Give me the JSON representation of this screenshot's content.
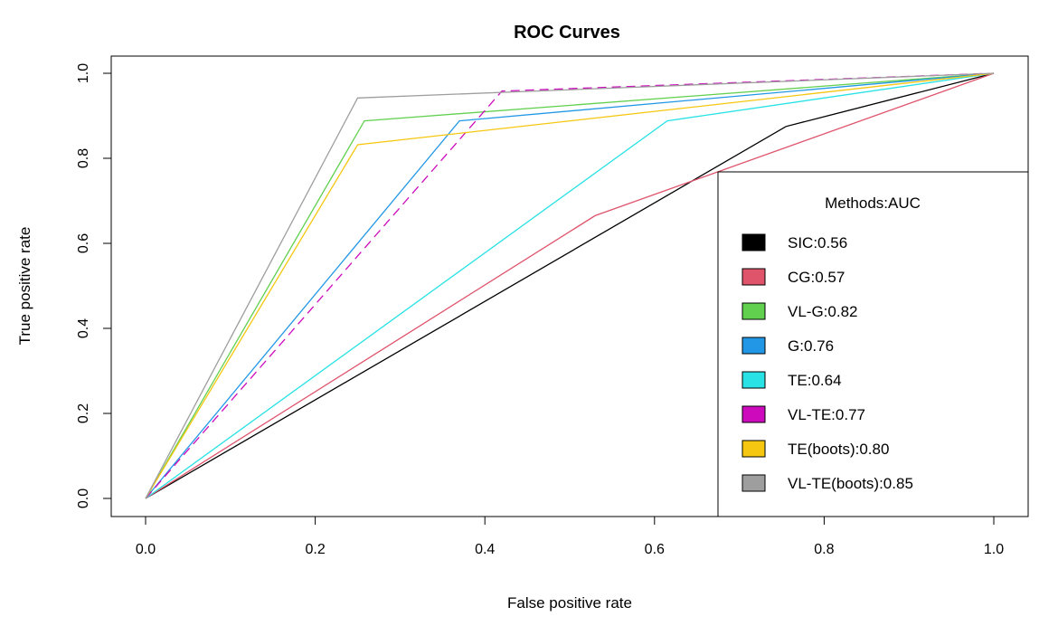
{
  "chart_data": {
    "type": "line",
    "title": "ROC Curves",
    "xlabel": "False positive rate",
    "ylabel": "True positive rate",
    "xlim": [
      0,
      1
    ],
    "ylim": [
      0,
      1
    ],
    "xticks": [
      "0.0",
      "0.2",
      "0.4",
      "0.6",
      "0.8",
      "1.0"
    ],
    "yticks": [
      "0.0",
      "0.2",
      "0.4",
      "0.6",
      "0.8",
      "1.0"
    ],
    "legend": {
      "title": "Methods:AUC",
      "position": "bottom-right"
    },
    "series": [
      {
        "name": "SIC:0.56",
        "color": "#000000",
        "x": [
          0,
          0.755,
          1
        ],
        "y": [
          0,
          0.875,
          1
        ]
      },
      {
        "name": "CG:0.57",
        "color": "#df536b",
        "x": [
          0,
          0.53,
          1
        ],
        "y": [
          0,
          0.665,
          1
        ]
      },
      {
        "name": "VL-G:0.82",
        "color": "#61d04f",
        "x": [
          0,
          0.258,
          1
        ],
        "y": [
          0,
          0.888,
          1
        ]
      },
      {
        "name": "G:0.76",
        "color": "#2297e6",
        "x": [
          0,
          0.37,
          1
        ],
        "y": [
          0,
          0.888,
          1
        ]
      },
      {
        "name": "TE:0.64",
        "color": "#28e2e5",
        "x": [
          0,
          0.615,
          1
        ],
        "y": [
          0,
          0.888,
          1
        ]
      },
      {
        "name": "VL-TE:0.77",
        "color": "#cd0bbc",
        "x": [
          0,
          0.42,
          1
        ],
        "y": [
          0,
          0.958,
          1
        ]
      },
      {
        "name": "TE(boots):0.80",
        "color": "#f5c710",
        "x": [
          0,
          0.25,
          1
        ],
        "y": [
          0,
          0.832,
          1
        ]
      },
      {
        "name": "VL-TE(boots):0.85",
        "color": "#9e9e9e",
        "x": [
          0,
          0.25,
          1
        ],
        "y": [
          0,
          0.942,
          1
        ]
      }
    ]
  }
}
